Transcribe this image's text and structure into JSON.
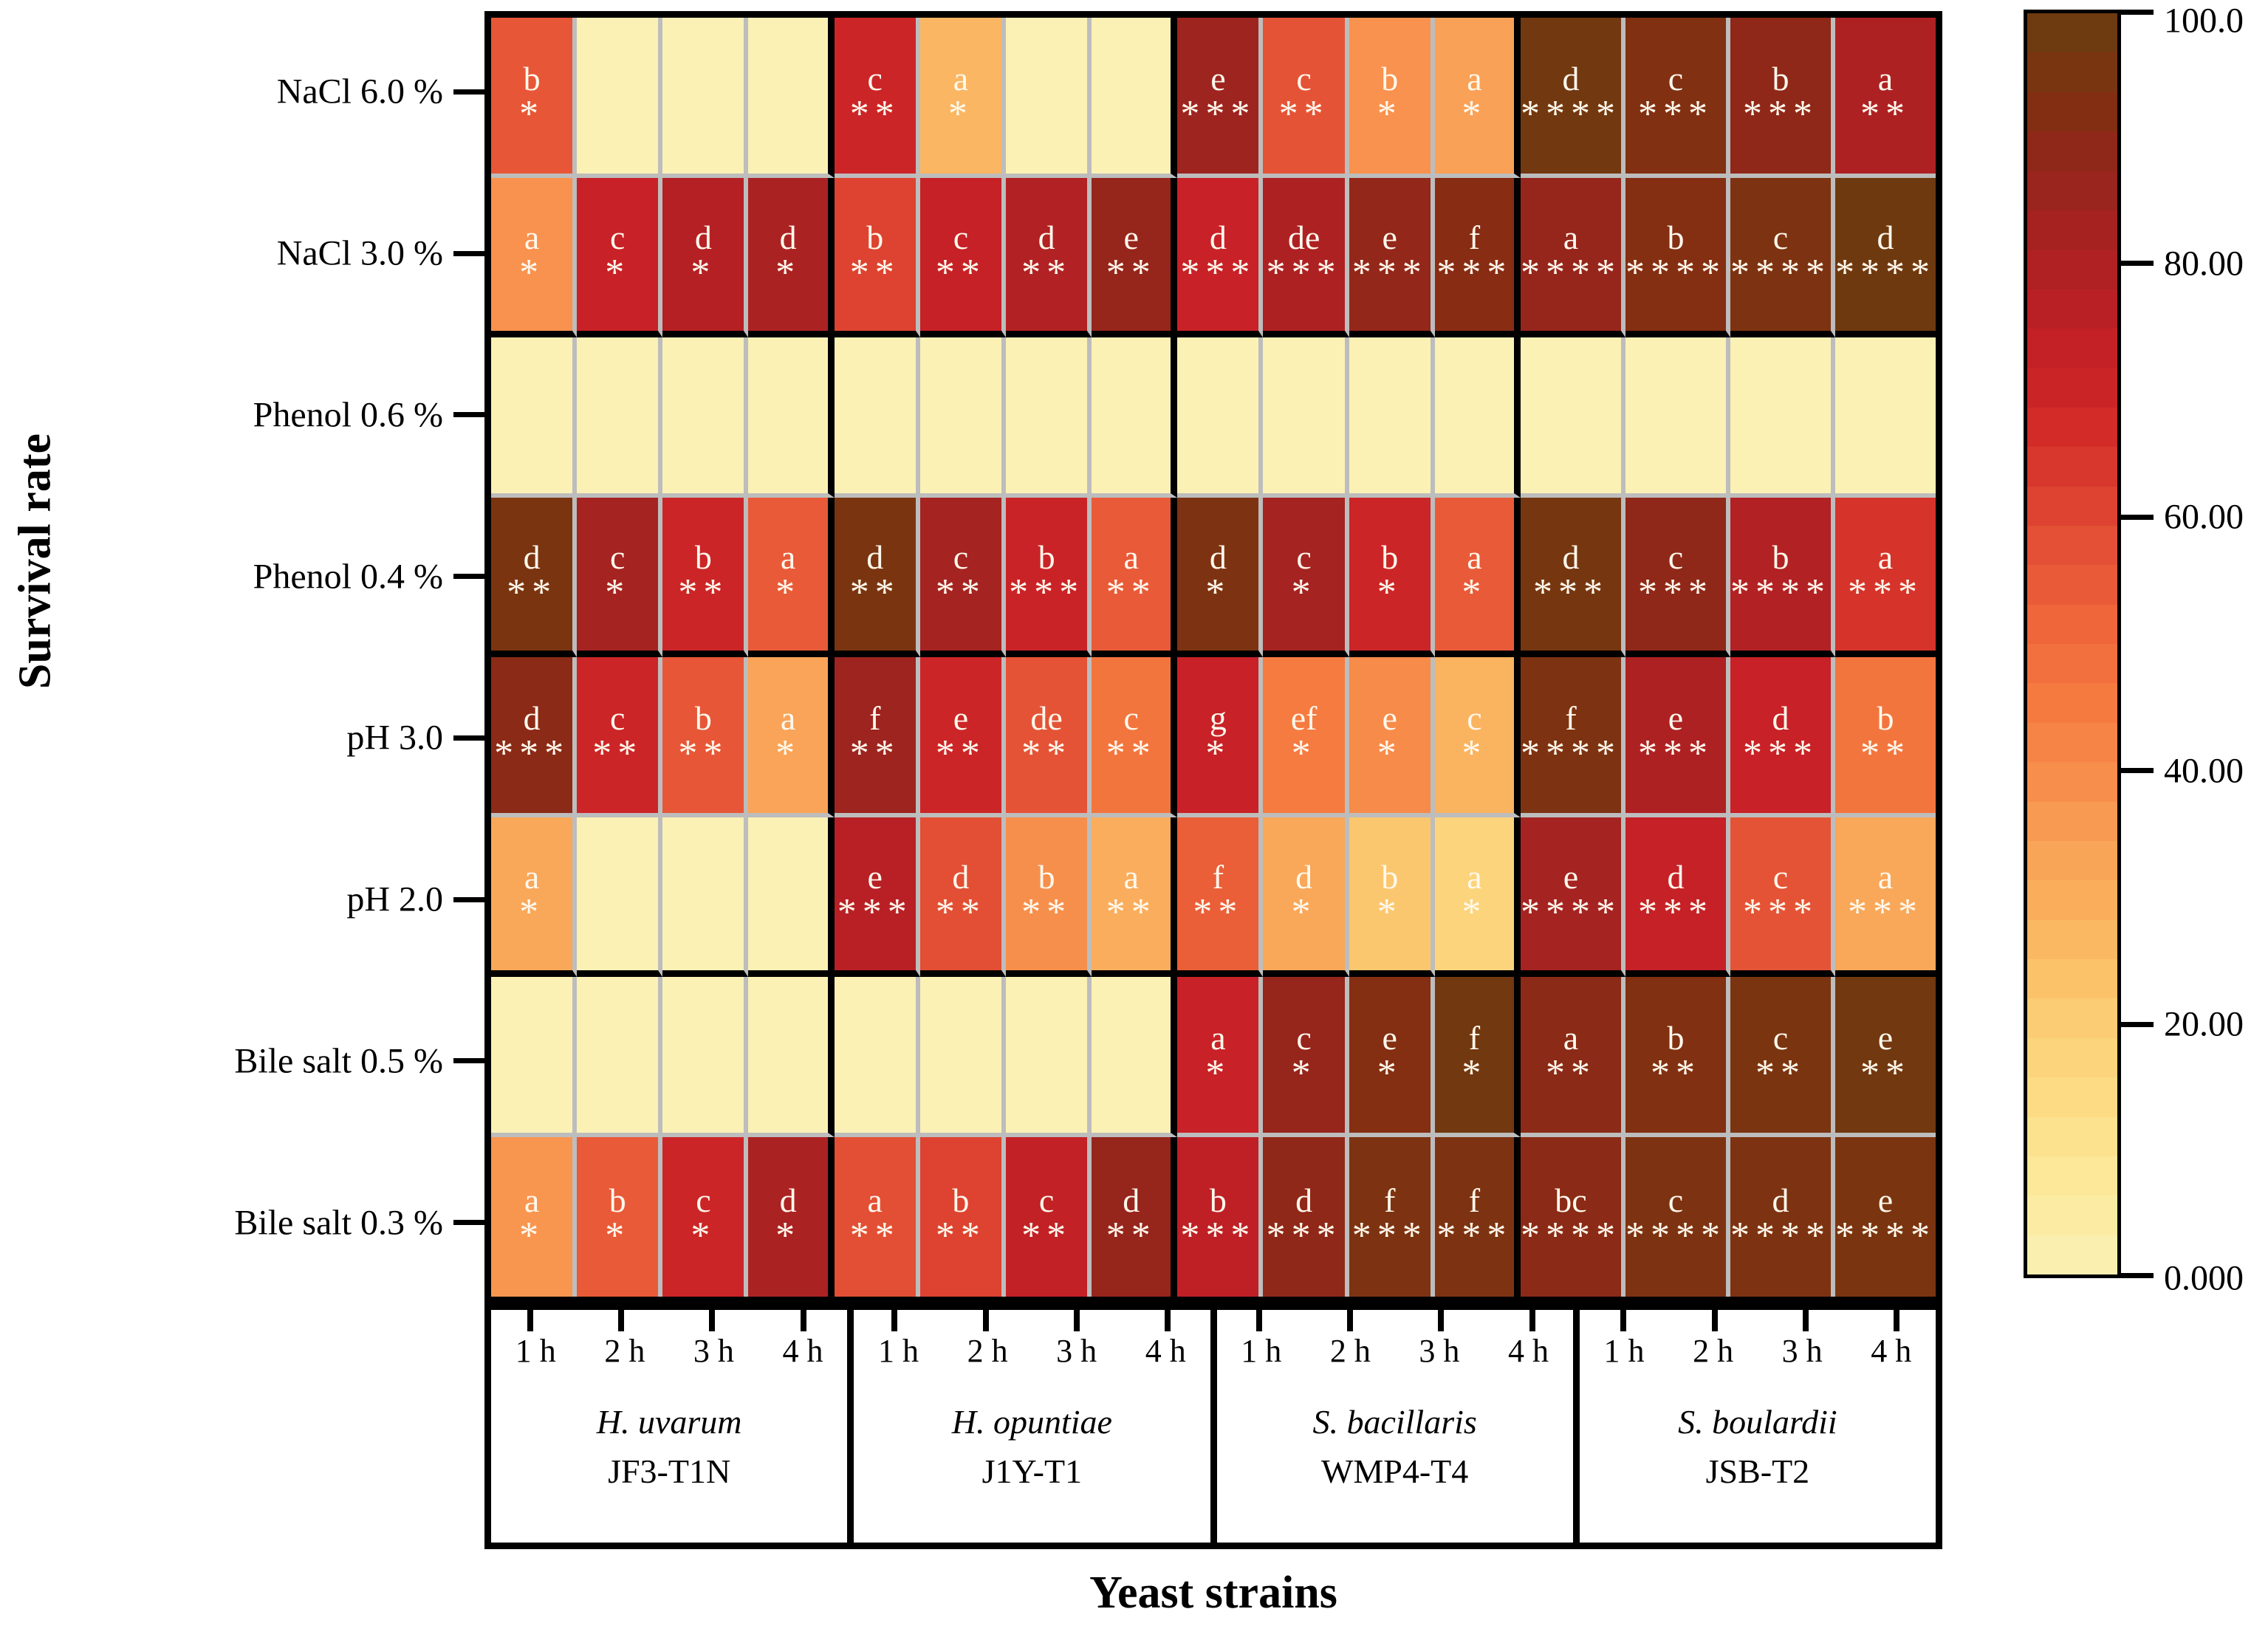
{
  "chart_data": {
    "type": "heatmap",
    "xlabel": "Yeast strains",
    "ylabel": "Survival rate",
    "value_range": [
      0,
      100
    ],
    "colorbar_tick_labels": [
      "100.0",
      "80.00",
      "60.00",
      "40.00",
      "20.00",
      "0.000"
    ],
    "colorbar_tick_values": [
      100,
      80,
      60,
      40,
      20,
      0
    ],
    "time_points": [
      "1 h",
      "2 h",
      "3 h",
      "4 h"
    ],
    "strains": [
      {
        "species": "H. uvarum",
        "code": "JF3-T1N"
      },
      {
        "species": "H. opuntiae",
        "code": "J1Y-T1"
      },
      {
        "species": "S. bacillaris",
        "code": "WMP4-T4"
      },
      {
        "species": "S. boulardii",
        "code": "JSB-T2"
      }
    ],
    "rows": [
      {
        "condition": "NaCl 6.0 %",
        "cells": [
          {
            "label": "b",
            "sig": "*",
            "value": 56
          },
          {
            "label": "",
            "sig": "",
            "value": 0
          },
          {
            "label": "",
            "sig": "",
            "value": 0
          },
          {
            "label": "",
            "sig": "",
            "value": 0
          },
          {
            "label": "c",
            "sig": "**",
            "value": 70
          },
          {
            "label": "a",
            "sig": "*",
            "value": 27
          },
          {
            "label": "",
            "sig": "",
            "value": 0
          },
          {
            "label": "",
            "sig": "",
            "value": 0
          },
          {
            "label": "e",
            "sig": "***",
            "value": 85
          },
          {
            "label": "c",
            "sig": "**",
            "value": 57
          },
          {
            "label": "b",
            "sig": "*",
            "value": 38
          },
          {
            "label": "a",
            "sig": "*",
            "value": 34
          },
          {
            "label": "d",
            "sig": "****",
            "value": 97
          },
          {
            "label": "c",
            "sig": "***",
            "value": 93
          },
          {
            "label": "b",
            "sig": "***",
            "value": 89
          },
          {
            "label": "a",
            "sig": "**",
            "value": 80
          }
        ]
      },
      {
        "condition": "NaCl 3.0 %",
        "cells": [
          {
            "label": "a",
            "sig": "*",
            "value": 38
          },
          {
            "label": "c",
            "sig": "*",
            "value": 72
          },
          {
            "label": "d",
            "sig": "*",
            "value": 78
          },
          {
            "label": "d",
            "sig": "*",
            "value": 81
          },
          {
            "label": "b",
            "sig": "**",
            "value": 61
          },
          {
            "label": "c",
            "sig": "**",
            "value": 73
          },
          {
            "label": "d",
            "sig": "**",
            "value": 79
          },
          {
            "label": "e",
            "sig": "**",
            "value": 87
          },
          {
            "label": "d",
            "sig": "***",
            "value": 72
          },
          {
            "label": "de",
            "sig": "***",
            "value": 80
          },
          {
            "label": "e",
            "sig": "***",
            "value": 88
          },
          {
            "label": "f",
            "sig": "***",
            "value": 91
          },
          {
            "label": "a",
            "sig": "****",
            "value": 87
          },
          {
            "label": "b",
            "sig": "****",
            "value": 92
          },
          {
            "label": "c",
            "sig": "****",
            "value": 94
          },
          {
            "label": "d",
            "sig": "****",
            "value": 98
          }
        ]
      },
      {
        "condition": "Phenol 0.6 %",
        "cells": [
          {
            "label": "",
            "sig": "",
            "value": 0
          },
          {
            "label": "",
            "sig": "",
            "value": 0
          },
          {
            "label": "",
            "sig": "",
            "value": 0
          },
          {
            "label": "",
            "sig": "",
            "value": 0
          },
          {
            "label": "",
            "sig": "",
            "value": 0
          },
          {
            "label": "",
            "sig": "",
            "value": 0
          },
          {
            "label": "",
            "sig": "",
            "value": 0
          },
          {
            "label": "",
            "sig": "",
            "value": 0
          },
          {
            "label": "",
            "sig": "",
            "value": 0
          },
          {
            "label": "",
            "sig": "",
            "value": 0
          },
          {
            "label": "",
            "sig": "",
            "value": 0
          },
          {
            "label": "",
            "sig": "",
            "value": 0
          },
          {
            "label": "",
            "sig": "",
            "value": 0
          },
          {
            "label": "",
            "sig": "",
            "value": 0
          },
          {
            "label": "",
            "sig": "",
            "value": 0
          },
          {
            "label": "",
            "sig": "",
            "value": 0
          }
        ]
      },
      {
        "condition": "Phenol 0.4 %",
        "cells": [
          {
            "label": "d",
            "sig": "**",
            "value": 95
          },
          {
            "label": "c",
            "sig": "*",
            "value": 83
          },
          {
            "label": "b",
            "sig": "**",
            "value": 70
          },
          {
            "label": "a",
            "sig": "*",
            "value": 55
          },
          {
            "label": "d",
            "sig": "**",
            "value": 95
          },
          {
            "label": "c",
            "sig": "**",
            "value": 83
          },
          {
            "label": "b",
            "sig": "***",
            "value": 71
          },
          {
            "label": "a",
            "sig": "**",
            "value": 55
          },
          {
            "label": "d",
            "sig": "*",
            "value": 94
          },
          {
            "label": "c",
            "sig": "*",
            "value": 83
          },
          {
            "label": "b",
            "sig": "*",
            "value": 70
          },
          {
            "label": "a",
            "sig": "*",
            "value": 55
          },
          {
            "label": "d",
            "sig": "***",
            "value": 96
          },
          {
            "label": "c",
            "sig": "***",
            "value": 89
          },
          {
            "label": "b",
            "sig": "****",
            "value": 79
          },
          {
            "label": "a",
            "sig": "***",
            "value": 65
          }
        ]
      },
      {
        "condition": "pH 3.0",
        "cells": [
          {
            "label": "d",
            "sig": "***",
            "value": 90
          },
          {
            "label": "c",
            "sig": "**",
            "value": 70
          },
          {
            "label": "b",
            "sig": "**",
            "value": 56
          },
          {
            "label": "a",
            "sig": "*",
            "value": 33
          },
          {
            "label": "f",
            "sig": "**",
            "value": 85
          },
          {
            "label": "e",
            "sig": "**",
            "value": 70
          },
          {
            "label": "de",
            "sig": "**",
            "value": 57
          },
          {
            "label": "c",
            "sig": "**",
            "value": 47
          },
          {
            "label": "g",
            "sig": "*",
            "value": 72
          },
          {
            "label": "ef",
            "sig": "*",
            "value": 45
          },
          {
            "label": "e",
            "sig": "*",
            "value": 40
          },
          {
            "label": "c",
            "sig": "*",
            "value": 28
          },
          {
            "label": "f",
            "sig": "****",
            "value": 94
          },
          {
            "label": "e",
            "sig": "***",
            "value": 80
          },
          {
            "label": "d",
            "sig": "***",
            "value": 72
          },
          {
            "label": "b",
            "sig": "**",
            "value": 47
          }
        ]
      },
      {
        "condition": "pH 2.0",
        "cells": [
          {
            "label": "a",
            "sig": "*",
            "value": 32
          },
          {
            "label": "",
            "sig": "",
            "value": 0
          },
          {
            "label": "",
            "sig": "",
            "value": 0
          },
          {
            "label": "",
            "sig": "",
            "value": 0
          },
          {
            "label": "e",
            "sig": "***",
            "value": 77
          },
          {
            "label": "d",
            "sig": "**",
            "value": 58
          },
          {
            "label": "b",
            "sig": "**",
            "value": 39
          },
          {
            "label": "a",
            "sig": "**",
            "value": 30
          },
          {
            "label": "f",
            "sig": "**",
            "value": 54
          },
          {
            "label": "d",
            "sig": "*",
            "value": 32
          },
          {
            "label": "b",
            "sig": "*",
            "value": 22
          },
          {
            "label": "a",
            "sig": "*",
            "value": 17
          },
          {
            "label": "e",
            "sig": "****",
            "value": 83
          },
          {
            "label": "d",
            "sig": "***",
            "value": 73
          },
          {
            "label": "c",
            "sig": "***",
            "value": 57
          },
          {
            "label": "a",
            "sig": "***",
            "value": 32
          }
        ]
      },
      {
        "condition": "Bile salt 0.5 %",
        "cells": [
          {
            "label": "",
            "sig": "",
            "value": 0
          },
          {
            "label": "",
            "sig": "",
            "value": 0
          },
          {
            "label": "",
            "sig": "",
            "value": 0
          },
          {
            "label": "",
            "sig": "",
            "value": 0
          },
          {
            "label": "",
            "sig": "",
            "value": 0
          },
          {
            "label": "",
            "sig": "",
            "value": 0
          },
          {
            "label": "",
            "sig": "",
            "value": 0
          },
          {
            "label": "",
            "sig": "",
            "value": 0
          },
          {
            "label": "a",
            "sig": "*",
            "value": 72
          },
          {
            "label": "c",
            "sig": "*",
            "value": 87
          },
          {
            "label": "e",
            "sig": "*",
            "value": 92
          },
          {
            "label": "f",
            "sig": "*",
            "value": 97
          },
          {
            "label": "a",
            "sig": "**",
            "value": 90
          },
          {
            "label": "b",
            "sig": "**",
            "value": 93
          },
          {
            "label": "c",
            "sig": "**",
            "value": 95
          },
          {
            "label": "e",
            "sig": "**",
            "value": 97
          }
        ]
      },
      {
        "condition": "Bile salt 0.3 %",
        "cells": [
          {
            "label": "a",
            "sig": "*",
            "value": 37
          },
          {
            "label": "b",
            "sig": "*",
            "value": 55
          },
          {
            "label": "c",
            "sig": "*",
            "value": 70
          },
          {
            "label": "d",
            "sig": "*",
            "value": 81
          },
          {
            "label": "a",
            "sig": "**",
            "value": 58
          },
          {
            "label": "b",
            "sig": "**",
            "value": 61
          },
          {
            "label": "c",
            "sig": "**",
            "value": 74
          },
          {
            "label": "d",
            "sig": "**",
            "value": 87
          },
          {
            "label": "b",
            "sig": "***",
            "value": 75
          },
          {
            "label": "d",
            "sig": "***",
            "value": 89
          },
          {
            "label": "f",
            "sig": "***",
            "value": 94
          },
          {
            "label": "f",
            "sig": "***",
            "value": 94
          },
          {
            "label": "bc",
            "sig": "****",
            "value": 90
          },
          {
            "label": "c",
            "sig": "****",
            "value": 94
          },
          {
            "label": "d",
            "sig": "****",
            "value": 94
          },
          {
            "label": "e",
            "sig": "****",
            "value": 95
          }
        ]
      }
    ],
    "colormap_stops": [
      [
        0,
        "#FBF1B5"
      ],
      [
        8,
        "#FCE897"
      ],
      [
        16,
        "#FCD77E"
      ],
      [
        22,
        "#FBC76E"
      ],
      [
        28,
        "#FAB35F"
      ],
      [
        34,
        "#F9A156"
      ],
      [
        40,
        "#F78B4A"
      ],
      [
        46,
        "#F4783F"
      ],
      [
        52,
        "#EE653A"
      ],
      [
        57,
        "#E55336"
      ],
      [
        62,
        "#DB3F2E"
      ],
      [
        67,
        "#D22B28"
      ],
      [
        72,
        "#C82127"
      ],
      [
        77,
        "#B82025"
      ],
      [
        82,
        "#A82222"
      ],
      [
        86,
        "#9A241E"
      ],
      [
        89,
        "#8F2818"
      ],
      [
        92,
        "#842E12"
      ],
      [
        95,
        "#7A3510"
      ],
      [
        97,
        "#72380F"
      ],
      [
        100,
        "#6A3C0E"
      ]
    ],
    "colors": {
      "grid_line": "#bdbdbd",
      "group_border": "#000000",
      "annotation": "#FFF8EC",
      "background": "#ffffff"
    }
  }
}
